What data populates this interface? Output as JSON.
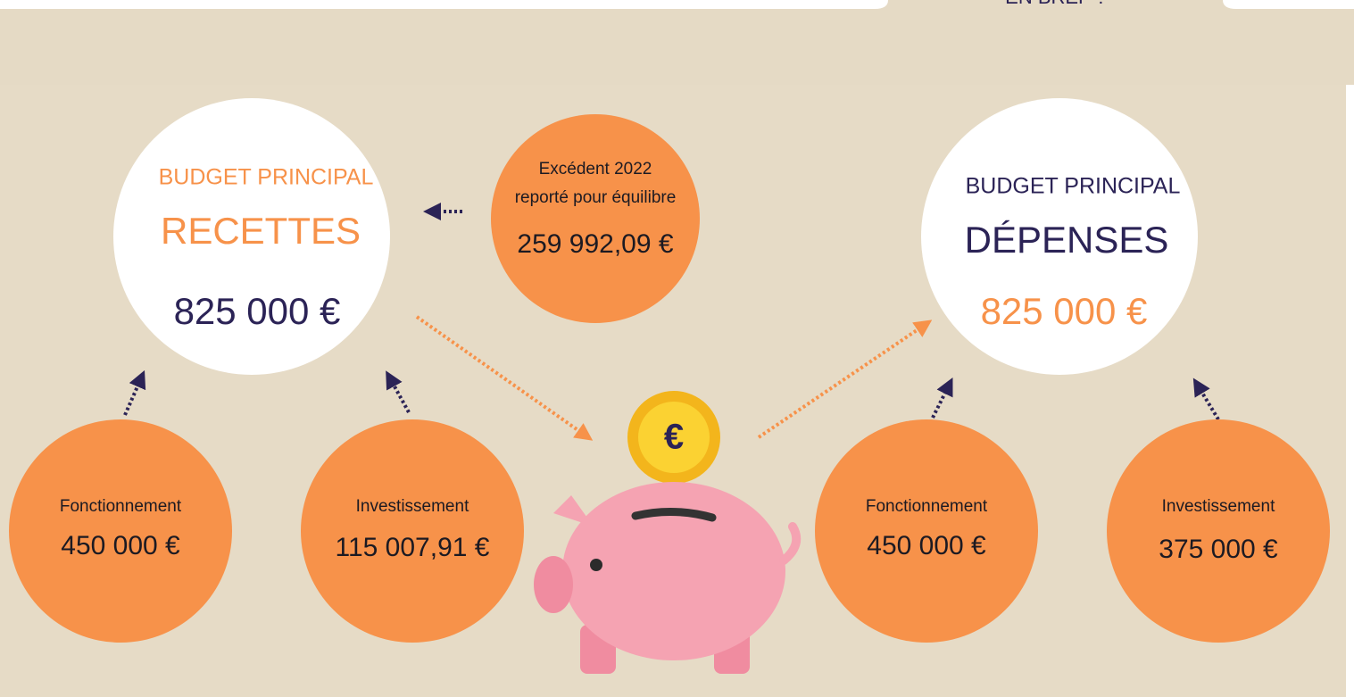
{
  "header": {
    "tab": "EN BREF ?"
  },
  "recettes": {
    "label": "BUDGET PRINCIPAL",
    "title": "RECETTES",
    "amount": "825 000 €"
  },
  "excedent": {
    "lines": [
      "Excédent 2022",
      "reporté pour équilibre"
    ],
    "amount": "259 992,09 €"
  },
  "depenses": {
    "label": "BUDGET PRINCIPAL",
    "title": "DÉPENSES",
    "amount": "825 000 €"
  },
  "recettes_parts": [
    {
      "label": "Fonctionnement",
      "amount": "450 000 €"
    },
    {
      "label": "Investissement",
      "amount": "115 007,91 €"
    }
  ],
  "depenses_parts": [
    {
      "label": "Fonctionnement",
      "amount": "450 000 €"
    },
    {
      "label": "Investissement",
      "amount": "375 000 €"
    }
  ],
  "piggy_bank": {
    "coin_symbol": "€"
  }
}
